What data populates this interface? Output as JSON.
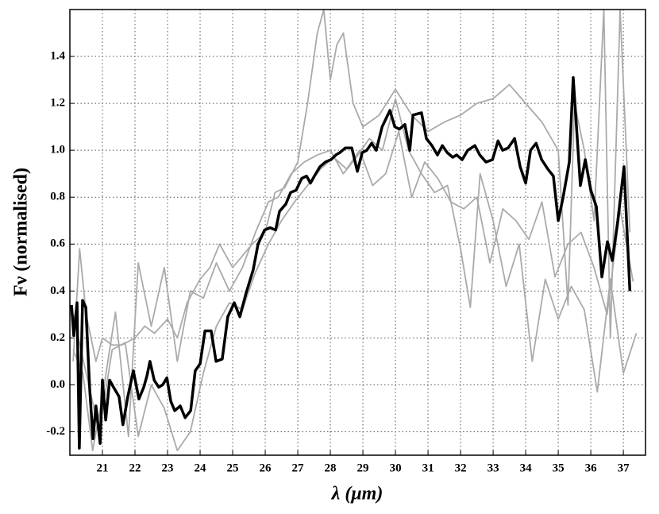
{
  "chart_data": {
    "type": "line",
    "xlabel": "λ (μm)",
    "ylabel": "Fν (normalised)",
    "xlim": [
      20.0,
      37.68
    ],
    "ylim": [
      -0.3,
      1.6
    ],
    "xticks": [
      21,
      22,
      23,
      24,
      25,
      26,
      27,
      28,
      29,
      30,
      31,
      32,
      33,
      34,
      35,
      36,
      37
    ],
    "yticks": [
      -0.2,
      {
        "value": 0,
        "label": "0.0"
      },
      0.2,
      0.4,
      0.6,
      0.8,
      {
        "value": 1,
        "label": "1.0"
      },
      1.2,
      1.4
    ],
    "grid": true,
    "series": [
      {
        "color": "#aaaaaa",
        "x": [
          20.1,
          20.3,
          20.5,
          20.8,
          21.0,
          21.3,
          21.6,
          22.0,
          22.3,
          22.6,
          23.0,
          23.3,
          23.6,
          24.0,
          24.3,
          24.6,
          25.0,
          25.3,
          25.6,
          26.0,
          26.3,
          26.6,
          27.0,
          27.3,
          27.6,
          27.8,
          28.0,
          28.2,
          28.4,
          28.7,
          29.0,
          29.5,
          30.0,
          30.5,
          31.0,
          31.5,
          32.0,
          32.5,
          33.0,
          33.5,
          34.0,
          34.5,
          35.0,
          35.3,
          35.5,
          35.8,
          36.1,
          36.4,
          36.6,
          36.9,
          37.2
        ],
        "values": [
          0.1,
          0.58,
          0.3,
          0.1,
          0.2,
          0.17,
          0.17,
          0.2,
          0.25,
          0.22,
          0.28,
          0.2,
          0.35,
          0.45,
          0.5,
          0.6,
          0.5,
          0.55,
          0.6,
          0.65,
          0.82,
          0.84,
          0.95,
          1.2,
          1.5,
          1.6,
          1.3,
          1.45,
          1.5,
          1.2,
          1.1,
          1.15,
          1.26,
          1.15,
          1.08,
          1.12,
          1.15,
          1.2,
          1.22,
          1.28,
          1.2,
          1.12,
          1.0,
          0.34,
          1.2,
          1.0,
          0.7,
          1.6,
          0.2,
          1.6,
          0.65
        ]
      },
      {
        "color": "#aaaaaa",
        "x": [
          20.1,
          20.4,
          20.7,
          21.0,
          21.4,
          21.8,
          22.1,
          22.5,
          22.9,
          23.3,
          23.7,
          24.1,
          24.5,
          24.9,
          25.3,
          25.7,
          26.1,
          26.4,
          26.8,
          27.2,
          27.6,
          28.0,
          28.4,
          28.8,
          29.2,
          29.6,
          30.0,
          30.4,
          30.8,
          31.2,
          31.6,
          32.0,
          32.3,
          32.6,
          33.0,
          33.4,
          33.8,
          34.2,
          34.6,
          35.0,
          35.4,
          35.8,
          36.2,
          36.6,
          37.0,
          37.4
        ],
        "values": [
          0.15,
          0.05,
          -0.28,
          -0.05,
          0.31,
          -0.22,
          0.52,
          0.25,
          0.5,
          0.1,
          0.4,
          0.37,
          0.52,
          0.4,
          0.5,
          0.65,
          0.78,
          0.8,
          0.9,
          0.95,
          0.98,
          1.0,
          0.9,
          0.97,
          1.05,
          1.0,
          1.22,
          1.0,
          0.9,
          0.82,
          0.85,
          0.58,
          0.33,
          0.9,
          0.7,
          0.42,
          0.6,
          0.1,
          0.45,
          0.28,
          0.42,
          0.32,
          -0.03,
          0.45,
          0.05,
          0.22
        ]
      },
      {
        "color": "#aaaaaa",
        "x": [
          20.1,
          20.5,
          20.9,
          21.3,
          21.7,
          22.1,
          22.5,
          22.9,
          23.3,
          23.7,
          24.1,
          24.5,
          24.9,
          25.3,
          25.7,
          26.1,
          26.5,
          26.9,
          27.3,
          27.7,
          28.1,
          28.5,
          28.9,
          29.3,
          29.7,
          30.1,
          30.5,
          30.9,
          31.3,
          31.7,
          32.1,
          32.5,
          32.9,
          33.3,
          33.7,
          34.1,
          34.5,
          34.9,
          35.3,
          35.7,
          36.1,
          36.5,
          36.9,
          37.3
        ],
        "values": [
          0.3,
          0.05,
          -0.2,
          0.15,
          0.18,
          -0.22,
          0.0,
          -0.1,
          -0.28,
          -0.2,
          0.05,
          0.25,
          0.35,
          0.32,
          0.48,
          0.6,
          0.7,
          0.78,
          0.85,
          0.92,
          0.97,
          0.92,
          1.0,
          0.85,
          0.9,
          1.08,
          0.8,
          0.95,
          0.88,
          0.78,
          0.75,
          0.8,
          0.52,
          0.75,
          0.7,
          0.62,
          0.78,
          0.46,
          0.6,
          0.65,
          0.5,
          0.3,
          0.75,
          0.44
        ]
      },
      {
        "color": "#000000",
        "x": [
          20.05,
          20.12,
          20.22,
          20.29,
          20.39,
          20.49,
          20.61,
          20.71,
          20.8,
          20.93,
          21.0,
          21.1,
          21.22,
          21.34,
          21.51,
          21.63,
          21.78,
          21.95,
          22.12,
          22.27,
          22.37,
          22.46,
          22.59,
          22.73,
          22.85,
          22.98,
          23.1,
          23.22,
          23.39,
          23.54,
          23.71,
          23.85,
          24.0,
          24.15,
          24.34,
          24.49,
          24.68,
          24.85,
          25.05,
          25.22,
          25.41,
          25.63,
          25.78,
          25.98,
          26.15,
          26.32,
          26.44,
          26.63,
          26.78,
          26.95,
          27.12,
          27.27,
          27.39,
          27.51,
          27.68,
          27.85,
          28.02,
          28.17,
          28.29,
          28.46,
          28.66,
          28.83,
          28.98,
          29.12,
          29.27,
          29.41,
          29.59,
          29.83,
          29.98,
          30.12,
          30.29,
          30.44,
          30.54,
          30.8,
          30.95,
          31.12,
          31.29,
          31.44,
          31.59,
          31.76,
          31.88,
          32.05,
          32.22,
          32.44,
          32.59,
          32.78,
          32.98,
          33.15,
          33.29,
          33.46,
          33.66,
          33.83,
          34.0,
          34.15,
          34.32,
          34.49,
          34.68,
          34.85,
          35.0,
          35.15,
          35.34,
          35.46,
          35.68,
          35.83,
          36.0,
          36.17,
          36.34,
          36.51,
          36.66,
          36.83,
          37.02,
          37.2
        ],
        "values": [
          0.34,
          0.21,
          0.35,
          -0.27,
          0.36,
          0.33,
          -0.02,
          -0.23,
          -0.09,
          -0.25,
          0.02,
          -0.15,
          0.02,
          -0.01,
          -0.05,
          -0.17,
          -0.05,
          0.06,
          -0.06,
          -0.01,
          0.04,
          0.1,
          0.02,
          -0.01,
          0.0,
          0.03,
          -0.07,
          -0.11,
          -0.09,
          -0.14,
          -0.11,
          0.06,
          0.09,
          0.23,
          0.23,
          0.1,
          0.11,
          0.29,
          0.35,
          0.29,
          0.39,
          0.49,
          0.6,
          0.66,
          0.67,
          0.66,
          0.74,
          0.77,
          0.82,
          0.83,
          0.88,
          0.89,
          0.86,
          0.89,
          0.93,
          0.95,
          0.96,
          0.98,
          0.99,
          1.01,
          1.01,
          0.91,
          0.99,
          1.0,
          1.03,
          1.0,
          1.1,
          1.17,
          1.1,
          1.09,
          1.11,
          1.0,
          1.15,
          1.16,
          1.05,
          1.02,
          0.98,
          1.02,
          0.99,
          0.97,
          0.98,
          0.96,
          1.0,
          1.02,
          0.98,
          0.95,
          0.96,
          1.04,
          1.0,
          1.01,
          1.05,
          0.93,
          0.86,
          1.0,
          1.03,
          0.96,
          0.92,
          0.89,
          0.7,
          0.8,
          0.95,
          1.31,
          0.85,
          0.96,
          0.83,
          0.76,
          0.46,
          0.61,
          0.53,
          0.7,
          0.93,
          0.4
        ]
      }
    ]
  }
}
